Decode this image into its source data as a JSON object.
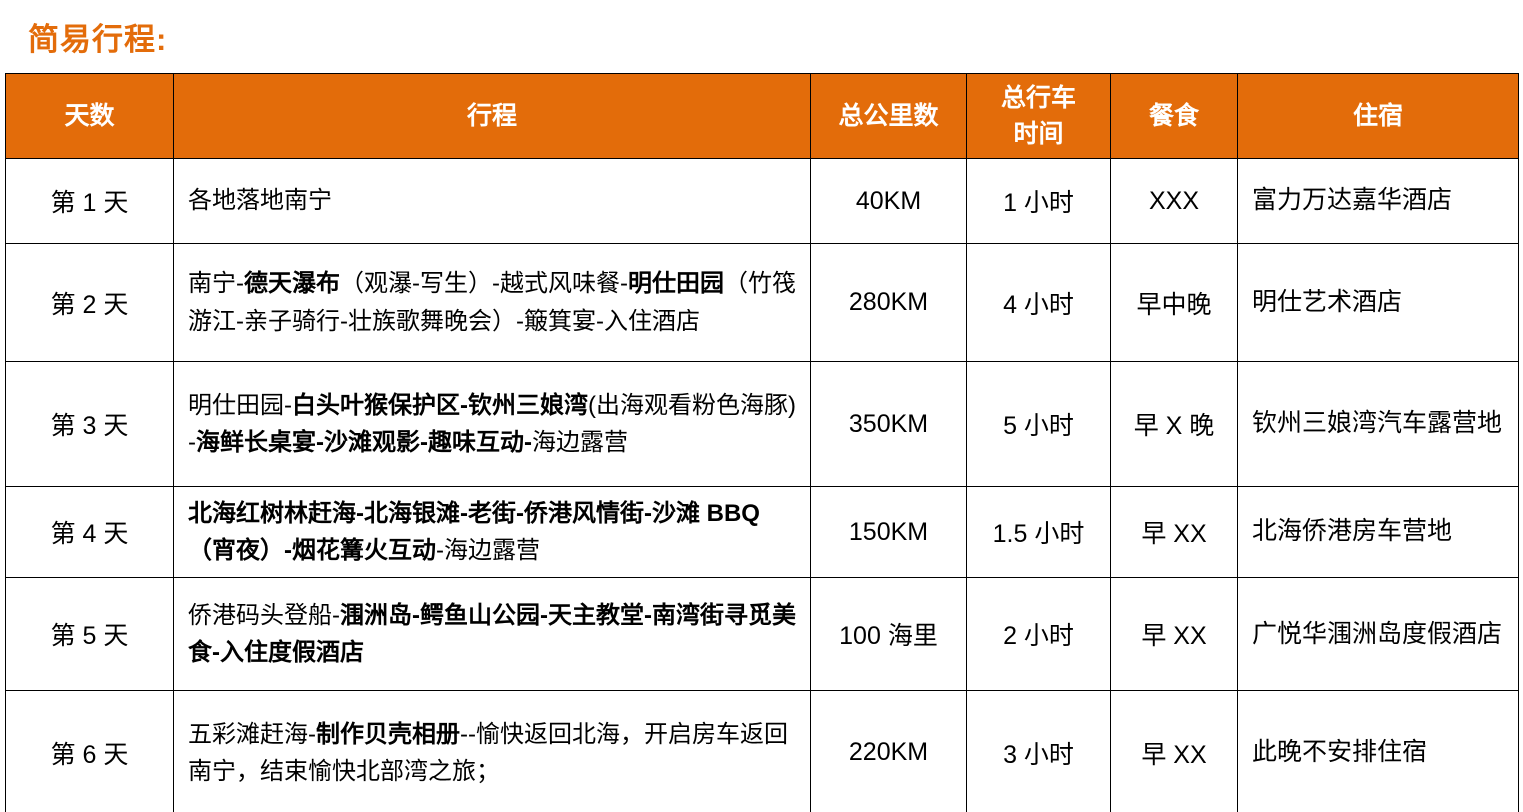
{
  "page": {
    "title": "简易行程:"
  },
  "theme": {
    "accent_orange": "#E36C0A",
    "header_text_color": "#FFFFFF",
    "body_text_color": "#000000",
    "border_color": "#000000"
  },
  "table": {
    "columns": [
      {
        "key": "day",
        "label": "天数"
      },
      {
        "key": "itinerary",
        "label": "行程"
      },
      {
        "key": "distance",
        "label": "总公里数"
      },
      {
        "key": "drive_time",
        "label": "总行车\n时间"
      },
      {
        "key": "meals",
        "label": "餐食"
      },
      {
        "key": "lodging",
        "label": "住宿"
      }
    ],
    "rows": [
      {
        "day": "第 1 天",
        "itinerary": [
          {
            "text": "各地落地南宁",
            "bold": false
          }
        ],
        "distance": "40KM",
        "drive_time": "1 小时",
        "meals": "XXX",
        "lodging": "富力万达嘉华酒店"
      },
      {
        "day": "第 2 天",
        "itinerary": [
          {
            "text": "南宁-",
            "bold": false
          },
          {
            "text": "德天瀑布",
            "bold": true
          },
          {
            "text": "（观瀑-写生）-越式风味餐-",
            "bold": false
          },
          {
            "text": "明仕田园",
            "bold": true
          },
          {
            "text": "（竹筏游江-亲子骑行-壮族歌舞晚会）-簸箕宴-入住酒店",
            "bold": false
          }
        ],
        "distance": "280KM",
        "drive_time": "4 小时",
        "meals": "早中晚",
        "lodging": "明仕艺术酒店"
      },
      {
        "day": "第 3 天",
        "itinerary": [
          {
            "text": "明仕田园-",
            "bold": false
          },
          {
            "text": "白头叶猴保护区-钦州三娘湾",
            "bold": true
          },
          {
            "text": "(出海观看粉色海豚) -",
            "bold": false
          },
          {
            "text": "海鲜长桌宴-沙滩观影-趣味互动-",
            "bold": true
          },
          {
            "text": "海边露营",
            "bold": false
          }
        ],
        "distance": "350KM",
        "drive_time": "5 小时",
        "meals": "早 X 晚",
        "lodging": "钦州三娘湾汽车露营地"
      },
      {
        "day": "第 4 天",
        "itinerary": [
          {
            "text": "北海红树林赶海-北海银滩-老街-侨港风情街-沙滩 BBQ（宵夜）-烟花篝火互动",
            "bold": true
          },
          {
            "text": "-海边露营",
            "bold": false
          }
        ],
        "distance": "150KM",
        "drive_time": "1.5 小时",
        "meals": "早 XX",
        "lodging": "北海侨港房车营地"
      },
      {
        "day": "第 5 天",
        "itinerary": [
          {
            "text": "侨港码头登船-",
            "bold": false
          },
          {
            "text": "涠洲岛-鳄鱼山公园-天主教堂-南湾街寻觅美食-入住度假酒店",
            "bold": true
          }
        ],
        "distance": "100 海里",
        "drive_time": "2 小时",
        "meals": "早 XX",
        "lodging": "广悦华涠洲岛度假酒店"
      },
      {
        "day": "第 6 天",
        "itinerary": [
          {
            "text": "五彩滩赶海-",
            "bold": false
          },
          {
            "text": "制作贝壳相册",
            "bold": true
          },
          {
            "text": "--愉快返回北海，开启房车返回南宁，结束愉快北部湾之旅；",
            "bold": false
          }
        ],
        "distance": "220KM",
        "drive_time": "3 小时",
        "meals": "早 XX",
        "lodging": "此晚不安排住宿"
      }
    ]
  }
}
